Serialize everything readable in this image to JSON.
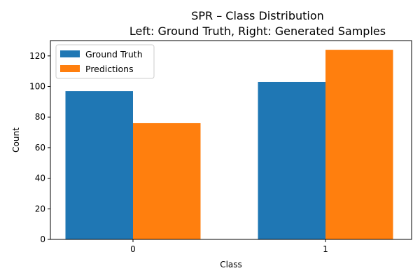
{
  "chart_data": {
    "type": "bar",
    "title": "SPR – Class Distribution",
    "subtitle": "Left: Ground Truth, Right: Generated Samples",
    "xlabel": "Class",
    "ylabel": "Count",
    "categories": [
      "0",
      "1"
    ],
    "series": [
      {
        "name": "Ground Truth",
        "values": [
          97,
          103
        ],
        "color": "#1f77b4"
      },
      {
        "name": "Predictions",
        "values": [
          76,
          124
        ],
        "color": "#ff7f0e"
      }
    ],
    "ylim": [
      0,
      130
    ],
    "yticks": [
      0,
      20,
      40,
      60,
      80,
      100,
      120
    ],
    "grid": false,
    "legend_position": "top-left"
  }
}
